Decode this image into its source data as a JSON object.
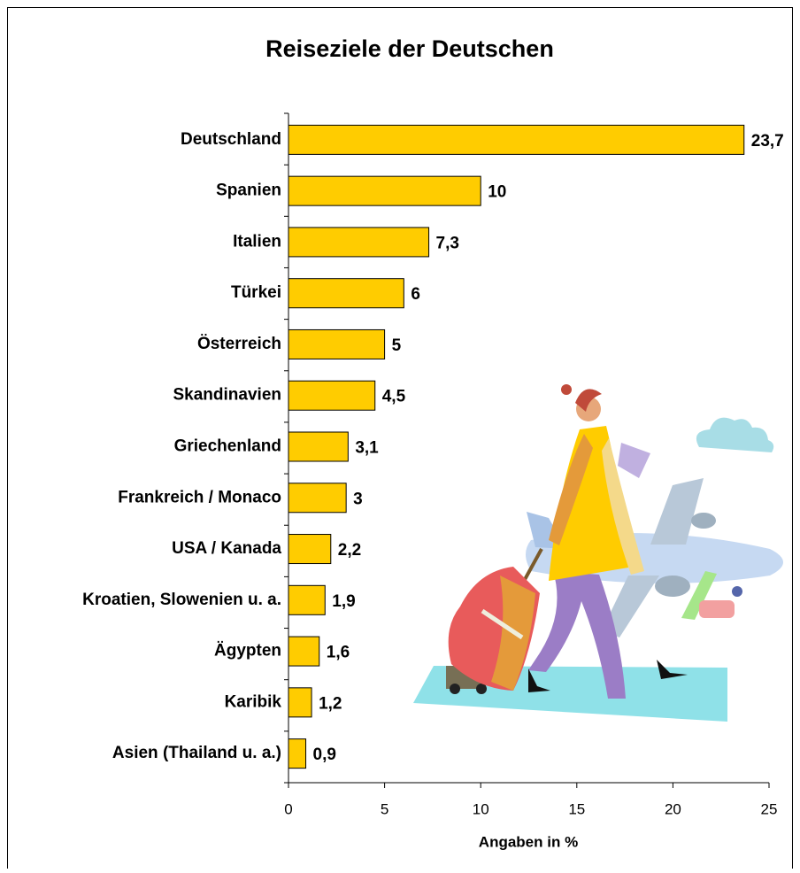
{
  "chart_data": {
    "type": "bar",
    "orientation": "horizontal",
    "title": "Reiseziele der Deutschen",
    "x_label": "Angaben in %",
    "categories": [
      "Deutschland",
      "Spanien",
      "Italien",
      "Türkei",
      "Österreich",
      "Skandinavien",
      "Griechenland",
      "Frankreich / Monaco",
      "USA / Kanada",
      "Kroatien, Slowenien u. a.",
      "Ägypten",
      "Karibik",
      "Asien (Thailand u. a.)"
    ],
    "values": [
      23.7,
      10,
      7.3,
      6,
      5,
      4.5,
      3.1,
      3,
      2.2,
      1.9,
      1.6,
      1.2,
      0.9
    ],
    "value_labels": [
      "23,7",
      "10",
      "7,3",
      "6",
      "5",
      "4,5",
      "3,1",
      "3",
      "2,2",
      "1,9",
      "1,6",
      "1,2",
      "0,9"
    ],
    "color": "#ffcc00",
    "xlim": [
      0,
      25
    ],
    "xticks": [
      0,
      5,
      10,
      15,
      20,
      25
    ],
    "grid": false
  }
}
